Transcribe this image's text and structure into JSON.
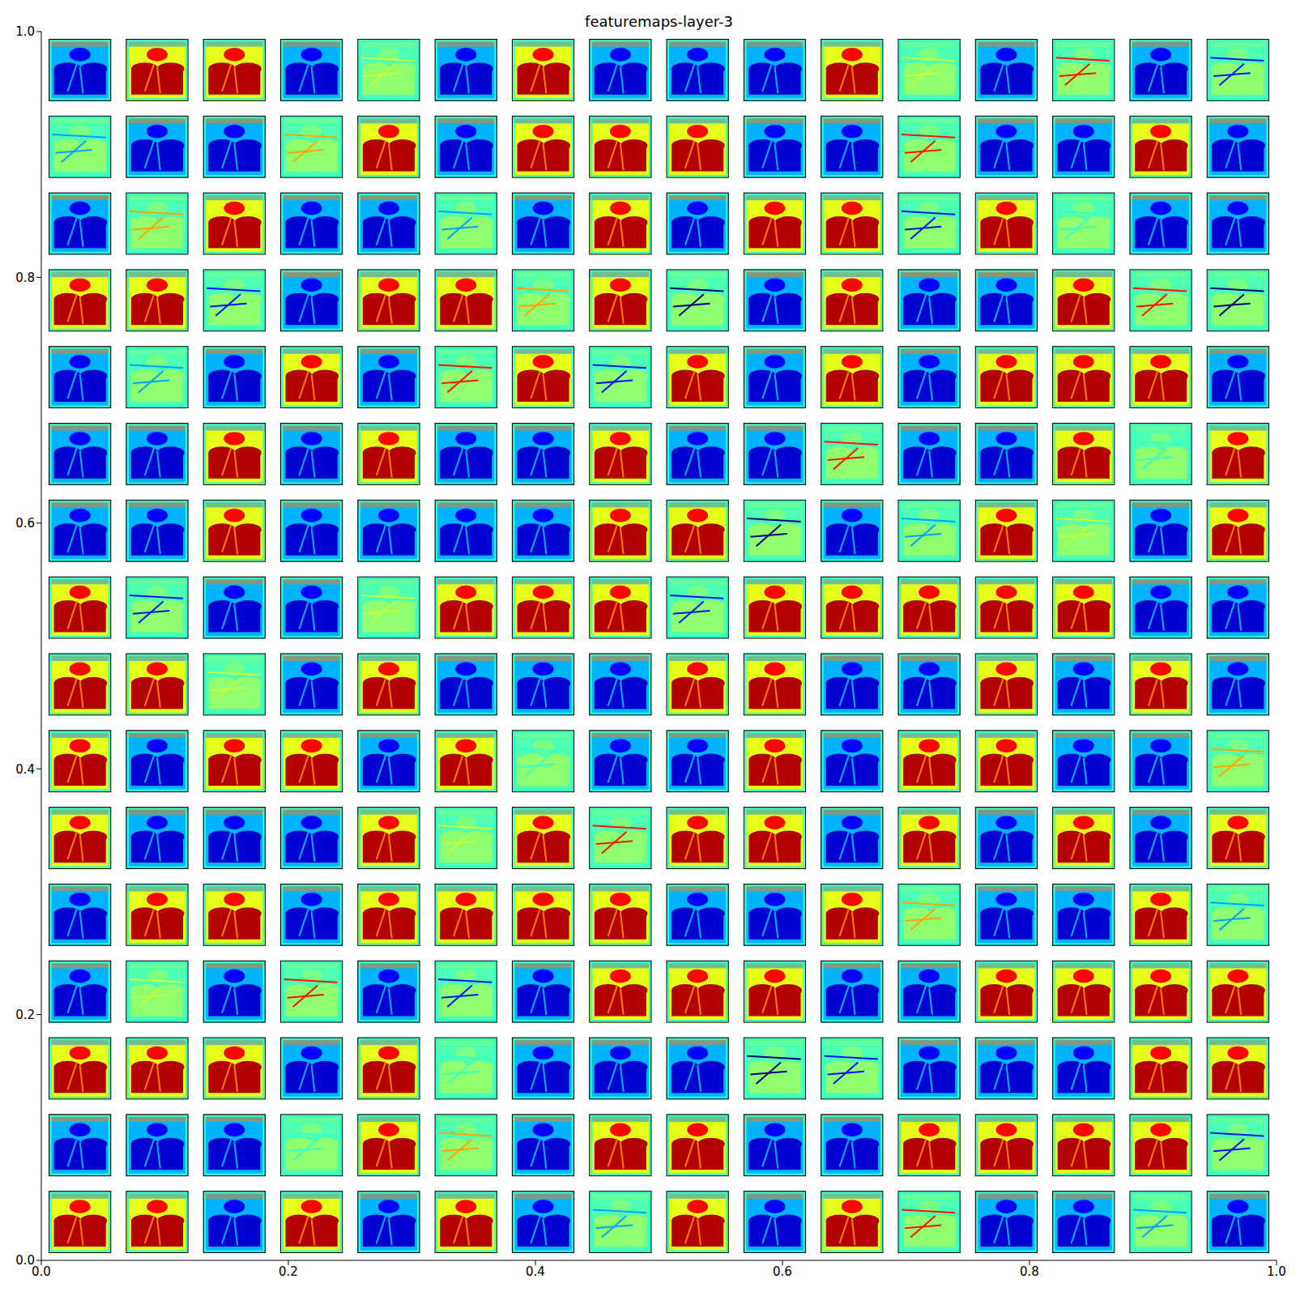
{
  "chart_data": {
    "type": "image_grid",
    "title": "featuremaps-layer-3",
    "xlim": [
      0,
      1
    ],
    "ylim": [
      0,
      1
    ],
    "xticks": [
      {
        "value": 0,
        "label": "0.0"
      },
      0.2,
      0.4,
      0.6,
      0.8,
      {
        "value": 1,
        "label": "1.0"
      }
    ],
    "yticks": [
      {
        "value": 0,
        "label": "0.0"
      },
      0.2,
      0.4,
      0.6,
      0.8,
      {
        "value": 1,
        "label": "1.0"
      }
    ],
    "cells": [
      [
        0,
        1,
        1,
        0,
        0.5,
        0,
        1,
        0,
        0,
        0,
        1,
        0.5,
        0,
        0.5,
        0,
        0.5
      ],
      [
        0.5,
        0,
        0,
        0.5,
        1,
        0,
        1,
        1,
        1,
        0,
        0,
        0.5,
        0,
        0,
        1,
        0
      ],
      [
        0,
        0.5,
        1,
        0,
        0,
        0.5,
        0,
        1,
        0,
        1,
        1,
        0.5,
        1,
        0.5,
        0,
        0
      ],
      [
        1,
        1,
        0.5,
        0,
        1,
        1,
        0.5,
        1,
        0.5,
        0,
        1,
        0,
        0,
        1,
        0.5,
        0.5
      ],
      [
        0,
        0.5,
        0,
        1,
        0,
        0.5,
        1,
        0.5,
        1,
        0,
        1,
        0,
        1,
        1,
        1,
        0
      ],
      [
        0,
        0,
        1,
        0,
        1,
        0,
        0,
        1,
        0,
        0,
        0.5,
        0,
        0,
        1,
        0.5,
        1
      ],
      [
        0,
        0,
        1,
        0,
        0,
        0,
        0,
        1,
        1,
        0.5,
        0,
        0.5,
        1,
        0.5,
        0,
        1
      ],
      [
        1,
        0.5,
        0,
        0,
        0.5,
        1,
        1,
        1,
        0.5,
        1,
        1,
        1,
        1,
        1,
        0,
        0
      ],
      [
        1,
        1,
        0.5,
        0,
        1,
        0,
        0,
        0,
        1,
        1,
        0,
        0,
        1,
        0,
        1,
        0
      ],
      [
        1,
        0,
        1,
        1,
        0,
        1,
        0.5,
        0,
        0,
        1,
        0,
        1,
        1,
        0,
        0,
        0.5
      ],
      [
        1,
        0,
        0,
        0,
        1,
        0.5,
        1,
        0.5,
        1,
        1,
        0,
        1,
        0,
        1,
        0,
        1
      ],
      [
        0,
        1,
        1,
        0,
        1,
        1,
        1,
        1,
        0,
        0,
        1,
        0.5,
        0,
        0,
        1,
        0.5
      ],
      [
        0,
        0.5,
        0,
        0.5,
        0,
        0.5,
        0,
        1,
        1,
        1,
        0,
        0,
        1,
        1,
        1,
        1
      ],
      [
        1,
        1,
        1,
        0,
        1,
        0.5,
        0,
        0,
        0,
        0.5,
        0.5,
        0,
        0,
        0,
        1,
        1
      ],
      [
        0,
        0,
        0,
        0.5,
        1,
        0.5,
        0,
        1,
        1,
        0,
        0,
        1,
        1,
        1,
        1,
        0.5
      ],
      [
        1,
        1,
        0,
        1,
        0,
        1,
        0,
        0.5,
        1,
        0,
        1,
        0.5,
        0,
        0,
        0.5,
        0
      ]
    ]
  }
}
